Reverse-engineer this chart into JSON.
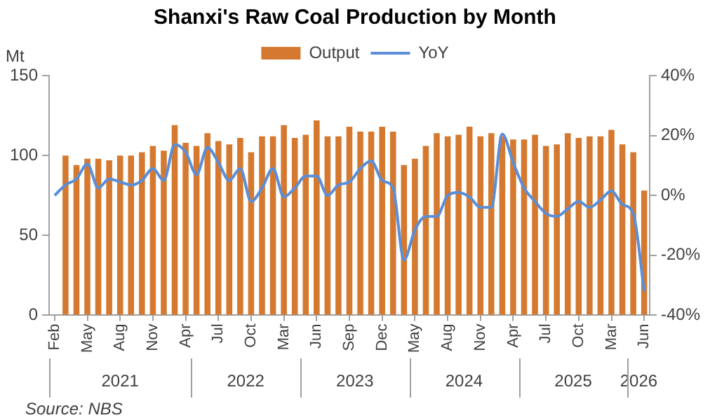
{
  "chart_data": {
    "type": "bar",
    "title": "Shanxi's Raw Coal Production by Month",
    "ylabel": "Mt",
    "categories": [
      "Feb",
      null,
      null,
      "May",
      null,
      null,
      "Aug",
      null,
      null,
      "Nov",
      null,
      null,
      "Apr",
      null,
      null,
      "Jul",
      null,
      null,
      "Oct",
      null,
      null,
      "Mar",
      null,
      null,
      "Jun",
      null,
      null,
      "Sep",
      null,
      null,
      "Dec",
      null,
      null,
      "May",
      null,
      null,
      "Aug",
      null,
      null,
      "Nov",
      null,
      null,
      "Apr",
      null,
      null,
      "Jul",
      null,
      null,
      "Oct",
      null,
      null,
      "Mar",
      null,
      null,
      "Jun"
    ],
    "series": [
      {
        "name": "Output",
        "color": "#d4792f",
        "values": [
          null,
          100,
          94,
          98,
          98,
          97,
          100,
          100,
          102,
          106,
          103,
          119,
          108,
          106,
          114,
          109,
          107,
          111,
          102,
          112,
          112,
          119,
          111,
          113,
          122,
          112,
          112,
          118,
          115,
          115,
          118,
          115,
          94,
          98,
          106,
          114,
          112,
          113,
          118,
          112,
          114,
          112,
          110,
          110,
          113,
          106,
          107,
          114,
          111,
          112,
          112,
          116,
          107,
          102,
          78
        ]
      },
      {
        "name": "YoY",
        "type": "line",
        "axis": "y2",
        "color": "#5b8ed6",
        "values": [
          0,
          3.5,
          5.5,
          10.5,
          2.5,
          5.5,
          4.5,
          3.5,
          5,
          9,
          5,
          17,
          14.5,
          7,
          16,
          11,
          5,
          9,
          -2,
          2.5,
          9,
          -0.5,
          2.5,
          6.5,
          6.5,
          0,
          3.5,
          4.5,
          9,
          11.5,
          5,
          2.5,
          -21.5,
          -11.5,
          -7,
          -7,
          0,
          1,
          -0.5,
          -4,
          -4,
          20.5,
          11,
          2.5,
          -2,
          -6,
          -7,
          -4.5,
          -2,
          -4,
          -1.5,
          1.5,
          -3,
          -6,
          -32
        ]
      }
    ],
    "ylim": [
      0,
      150
    ],
    "yticks": [
      0,
      50,
      100,
      150
    ],
    "y2lim": [
      -40,
      40
    ],
    "y2ticks": [
      {
        "value": -40,
        "label": "-40%"
      },
      {
        "value": -20,
        "label": "-20%"
      },
      {
        "value": 0,
        "label": "0%"
      },
      {
        "value": 20,
        "label": "20%"
      },
      {
        "value": 40,
        "label": "40%"
      }
    ],
    "annotations": [
      "2021",
      "2022",
      "2023",
      "2024",
      "2025",
      "2026",
      "Source: NBS"
    ],
    "legend": "top",
    "grid": false,
    "marker": "none",
    "line_style": "solid"
  }
}
